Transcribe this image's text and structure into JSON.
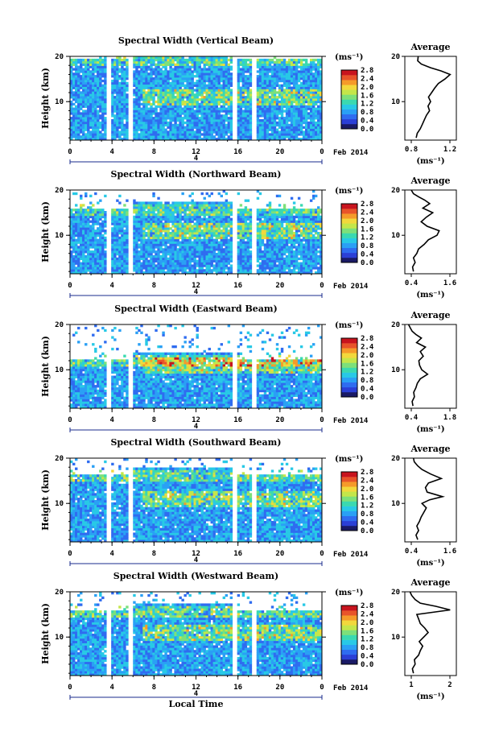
{
  "figure": {
    "x_axis_label": "Local Time",
    "date_label": "4",
    "month_label": "Feb 2014",
    "y_axis_label": "Height (km)",
    "colorbar_unit": "(ms⁻¹)",
    "average_title": "Average",
    "average_unit": "(ms⁻¹)"
  },
  "colors": {
    "colormap": [
      "#1a1a66",
      "#2b3fd6",
      "#2f6cf0",
      "#2aa0f5",
      "#28c9e6",
      "#3ad9b0",
      "#7de07a",
      "#c4e64a",
      "#f2d83c",
      "#f59a2a",
      "#e8542a",
      "#c8141e"
    ],
    "profile_line": "#000000",
    "missing_data": "#ffffff"
  },
  "chart_data": [
    {
      "type": "heatmap",
      "title": "Spectral Width (Vertical Beam)",
      "xlabel": "",
      "ylabel": "Height (km)",
      "xlim": [
        0,
        24
      ],
      "ylim": [
        1.5,
        20
      ],
      "xticks": [
        "0",
        "4",
        "8",
        "12",
        "16",
        "20",
        "0"
      ],
      "yticks": [
        "10",
        "20"
      ],
      "colorbar_ticks": [
        "0.0",
        "0.4",
        "0.8",
        "1.2",
        "1.6",
        "2.0",
        "2.4",
        "2.8"
      ],
      "data_gaps_hours": [
        [
          3.4,
          3.9
        ],
        [
          5.6,
          5.9
        ],
        [
          15.5,
          16.0
        ],
        [
          17.4,
          17.8
        ]
      ],
      "color_top_km": 20,
      "average_profile": {
        "xlim": [
          0.4,
          1.4
        ],
        "xticks": [
          "0.8",
          "1.2"
        ],
        "x": [
          0.62,
          0.64,
          0.7,
          0.74,
          0.78,
          0.82,
          0.88,
          0.85,
          0.9,
          0.86,
          0.92,
          0.98,
          1.05,
          1.18,
          1.28,
          1.1,
          0.9,
          0.72,
          0.65,
          0.66
        ],
        "height_km": [
          2,
          3,
          4,
          5,
          6,
          7,
          8,
          9,
          10,
          11,
          12,
          13,
          14,
          15,
          16,
          16.8,
          17.5,
          18.3,
          19,
          20
        ]
      }
    },
    {
      "type": "heatmap",
      "title": "Spectral Width (Northward Beam)",
      "xlabel": "",
      "ylabel": "Height (km)",
      "xlim": [
        0,
        24
      ],
      "ylim": [
        1.5,
        20
      ],
      "xticks": [
        "0",
        "4",
        "8",
        "12",
        "16",
        "20",
        "0"
      ],
      "yticks": [
        "10",
        "20"
      ],
      "colorbar_ticks": [
        "0.0",
        "0.4",
        "0.8",
        "1.2",
        "1.6",
        "2.0",
        "2.4",
        "2.8"
      ],
      "data_gaps_hours": [
        [
          3.4,
          3.9
        ],
        [
          5.6,
          5.9
        ],
        [
          15.5,
          16.0
        ],
        [
          17.4,
          17.8
        ]
      ],
      "color_top_km": 16.5,
      "average_profile": {
        "xlim": [
          0.4,
          1.6
        ],
        "xticks": [
          "0.4",
          "1.6"
        ],
        "x": [
          0.6,
          0.58,
          0.64,
          0.6,
          0.68,
          0.72,
          0.85,
          0.95,
          1.15,
          1.2,
          0.92,
          0.78,
          0.9,
          1.05,
          0.82,
          0.98,
          0.86,
          0.72,
          0.6,
          0.55
        ],
        "height_km": [
          2,
          3,
          4,
          5,
          6,
          7,
          8,
          9,
          10,
          11,
          12,
          13,
          14,
          15,
          16,
          17,
          17.8,
          18.5,
          19.2,
          20
        ]
      }
    },
    {
      "type": "heatmap",
      "title": "Spectral Width (Eastward Beam)",
      "xlabel": "",
      "ylabel": "Height (km)",
      "xlim": [
        0,
        24
      ],
      "ylim": [
        1.5,
        20
      ],
      "xticks": [
        "0",
        "4",
        "8",
        "12",
        "16",
        "20",
        "0"
      ],
      "yticks": [
        "10",
        "20"
      ],
      "colorbar_ticks": [
        "0.0",
        "0.4",
        "0.8",
        "1.2",
        "1.6",
        "2.0",
        "2.4",
        "2.8"
      ],
      "data_gaps_hours": [
        [
          3.4,
          3.9
        ],
        [
          5.6,
          5.9
        ],
        [
          15.5,
          16.0
        ],
        [
          17.4,
          17.8
        ]
      ],
      "color_top_km": 13,
      "average_profile": {
        "xlim": [
          0.4,
          1.8
        ],
        "xticks": [
          "0.4",
          "1.8"
        ],
        "x": [
          0.62,
          0.6,
          0.66,
          0.64,
          0.7,
          0.74,
          0.82,
          1.02,
          0.86,
          0.8,
          0.78,
          0.9,
          0.82,
          0.96,
          0.72,
          0.85,
          0.7,
          0.6,
          0.55,
          0.5
        ],
        "height_km": [
          2,
          3,
          4,
          5,
          6,
          7,
          8,
          9,
          10,
          11,
          12,
          13,
          14,
          15,
          16,
          17,
          17.8,
          18.5,
          19.2,
          20
        ]
      }
    },
    {
      "type": "heatmap",
      "title": "Spectral Width (Southward Beam)",
      "xlabel": "",
      "ylabel": "Height (km)",
      "xlim": [
        0,
        24
      ],
      "ylim": [
        1.5,
        20
      ],
      "xticks": [
        "0",
        "4",
        "8",
        "12",
        "16",
        "20",
        "0"
      ],
      "yticks": [
        "10",
        "20"
      ],
      "colorbar_ticks": [
        "0.0",
        "0.4",
        "0.8",
        "1.2",
        "1.6",
        "2.0",
        "2.4",
        "2.8"
      ],
      "data_gaps_hours": [
        [
          3.4,
          3.9
        ],
        [
          5.6,
          5.9
        ],
        [
          15.5,
          16.0
        ],
        [
          17.4,
          17.8
        ]
      ],
      "color_top_km": 17,
      "average_profile": {
        "xlim": [
          0.4,
          1.6
        ],
        "xticks": [
          "0.4",
          "1.6"
        ],
        "x": [
          0.7,
          0.66,
          0.72,
          0.68,
          0.74,
          0.78,
          0.84,
          0.9,
          0.8,
          0.98,
          1.28,
          0.92,
          0.88,
          0.95,
          1.25,
          1.0,
          0.8,
          0.7,
          0.62,
          0.6
        ],
        "height_km": [
          2,
          3,
          4,
          5,
          6,
          7,
          8,
          9,
          10,
          10.8,
          11.5,
          12.5,
          13.5,
          14.5,
          15.5,
          16.5,
          17.5,
          18.3,
          19.2,
          20
        ]
      }
    },
    {
      "type": "heatmap",
      "title": "Spectral Width (Westward Beam)",
      "xlabel": "Local Time",
      "ylabel": "Height (km)",
      "xlim": [
        0,
        24
      ],
      "ylim": [
        1.5,
        20
      ],
      "xticks": [
        "0",
        "4",
        "8",
        "12",
        "16",
        "20",
        "0"
      ],
      "yticks": [
        "10",
        "20"
      ],
      "colorbar_ticks": [
        "0.0",
        "0.4",
        "0.8",
        "1.2",
        "1.6",
        "2.0",
        "2.4",
        "2.8"
      ],
      "data_gaps_hours": [
        [
          3.4,
          3.9
        ],
        [
          5.6,
          5.9
        ],
        [
          15.5,
          16.0
        ],
        [
          17.4,
          17.8
        ]
      ],
      "color_top_km": 16.5,
      "average_profile": {
        "xlim": [
          0.5,
          2.0
        ],
        "xticks": [
          "1",
          "2"
        ],
        "x": [
          0.75,
          0.72,
          0.8,
          0.78,
          0.9,
          0.95,
          1.02,
          0.92,
          1.05,
          1.18,
          1.08,
          0.95,
          0.9,
          0.85,
          1.82,
          1.4,
          0.95,
          0.8,
          0.7,
          0.65
        ],
        "height_km": [
          2,
          3,
          4,
          5,
          6,
          7,
          8,
          9,
          10,
          11,
          12,
          13,
          14,
          15,
          16,
          16.8,
          17.5,
          18.3,
          19.2,
          20
        ]
      }
    }
  ]
}
